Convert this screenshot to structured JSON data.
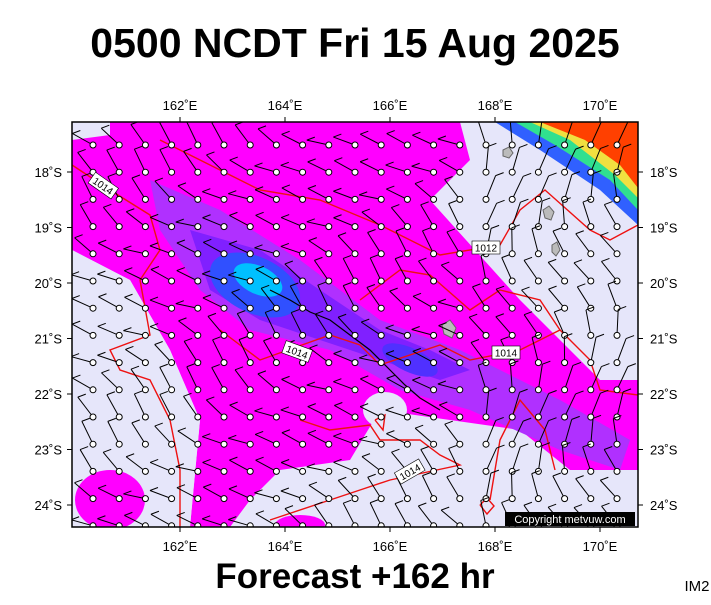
{
  "header": {
    "title": "0500 NCDT Fri 15 Aug 2025"
  },
  "map": {
    "lon_labels": [
      "162˚E",
      "164˚E",
      "166˚E",
      "168˚E",
      "170˚E"
    ],
    "lat_labels": [
      "18˚S",
      "19˚S",
      "20˚S",
      "21˚S",
      "22˚S",
      "23˚S",
      "24˚S"
    ],
    "isobar_labels": [
      "1014",
      "1012",
      "1014",
      "1014",
      "1014"
    ],
    "copyright": "Copyright metvuw.com"
  },
  "footer": {
    "forecast": "Forecast +162 hr",
    "corner": "IM2"
  }
}
